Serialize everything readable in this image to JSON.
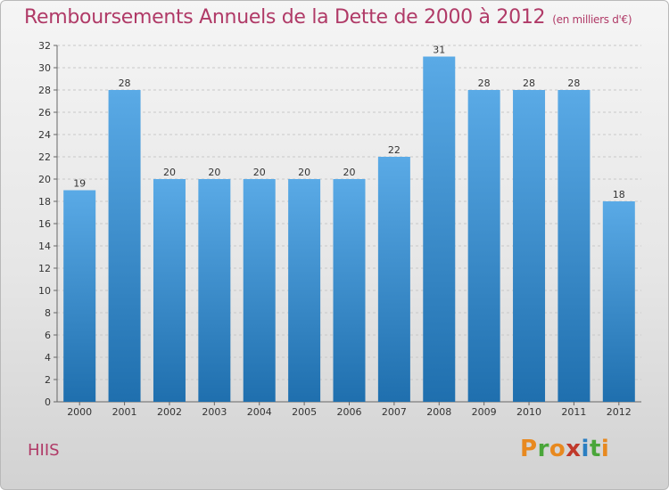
{
  "header": {
    "title": "Remboursements Annuels de la Dette de 2000 à 2012",
    "unit": "(en milliers d'€)"
  },
  "footer": {
    "commune": "HIIS",
    "logo_text": "Proxiti",
    "logo_colors": [
      "#e8891f",
      "#4aa63a",
      "#e8891f",
      "#c0392b",
      "#2a7fc3",
      "#4aa63a",
      "#e8891f"
    ]
  },
  "colors": {
    "accent": "#b03a67",
    "bar_top": "#5aaae6",
    "bar_bottom": "#1f6fae",
    "grid": "#c8c8c8",
    "axis_text": "#333333"
  },
  "chart_data": {
    "type": "bar",
    "title": "Remboursements Annuels de la Dette de 2000 à 2012",
    "subtitle": "(en milliers d'€)",
    "categories": [
      "2000",
      "2001",
      "2002",
      "2003",
      "2004",
      "2005",
      "2006",
      "2007",
      "2008",
      "2009",
      "2010",
      "2011",
      "2012"
    ],
    "values": [
      19,
      28,
      20,
      20,
      20,
      20,
      20,
      22,
      31,
      28,
      28,
      28,
      18
    ],
    "yticks": [
      0,
      2,
      4,
      6,
      8,
      10,
      12,
      14,
      16,
      18,
      20,
      22,
      24,
      26,
      28,
      30,
      32
    ],
    "ylim": [
      0,
      32
    ],
    "xlabel": "",
    "ylabel": "",
    "grid": true,
    "legend": "none",
    "data_labels": true
  }
}
